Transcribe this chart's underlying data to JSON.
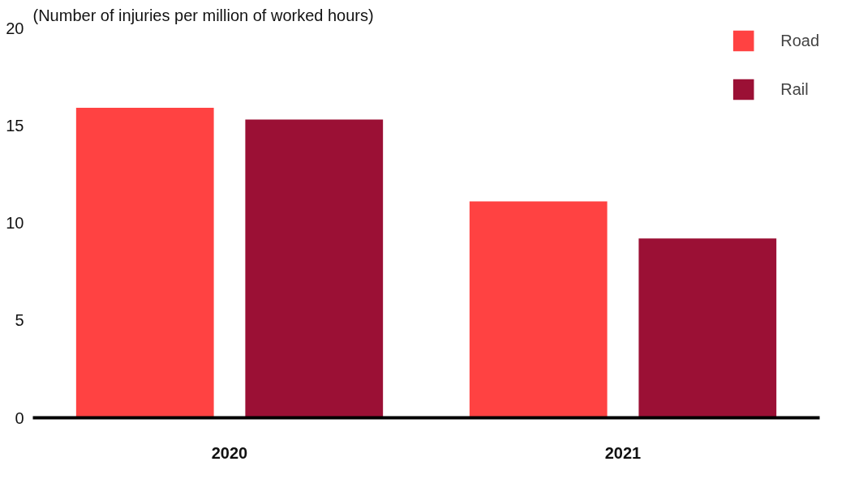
{
  "chart_data": {
    "type": "bar",
    "title": "(Number of injuries per million of worked hours)",
    "categories": [
      "2020",
      "2021"
    ],
    "series": [
      {
        "name": "Road",
        "color": "#ff4242",
        "values": [
          15.9,
          11.1
        ]
      },
      {
        "name": "Rail",
        "color": "#9b1035",
        "values": [
          15.3,
          9.2
        ]
      }
    ],
    "ylim": [
      0,
      20
    ],
    "yticks": [
      0,
      5,
      10,
      15,
      20
    ],
    "legend": "top right"
  }
}
